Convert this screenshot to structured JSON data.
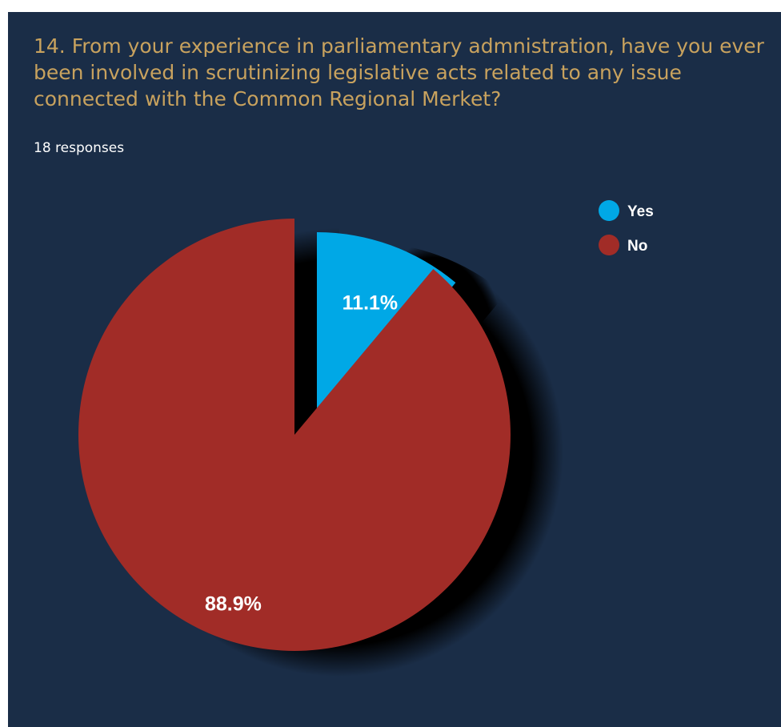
{
  "question": "14. From your experience in parliamentary admnistration, have you ever been involved in scrutinizing legislative acts related to any issue connected with the Common Regional Merket?",
  "responses": "18 responses",
  "colors": {
    "background": "#1a2d47",
    "question": "#c8a25e",
    "yes": "#00a8e6",
    "no": "#a12c27"
  },
  "chart_data": {
    "type": "pie",
    "legend_position": "top-right",
    "slices": [
      {
        "name": "Yes",
        "value": 11.1,
        "label": "11.1%",
        "color": "#00a8e6"
      },
      {
        "name": "No",
        "value": 88.9,
        "label": "88.9%",
        "color": "#a12c27"
      }
    ]
  }
}
